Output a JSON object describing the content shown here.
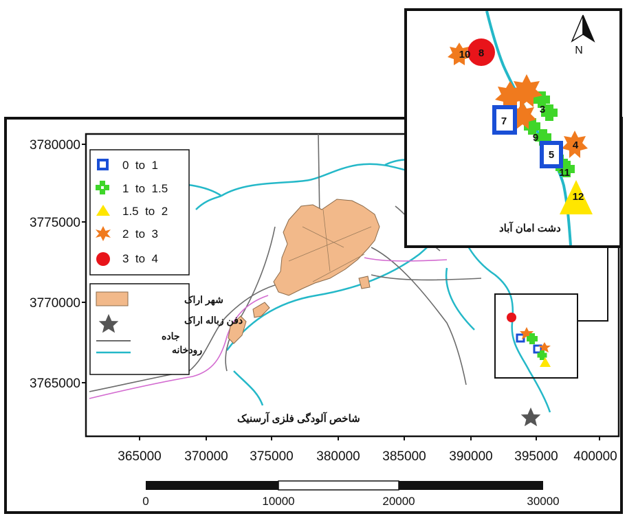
{
  "map": {
    "y_axis_labels": [
      "3780000",
      "3775000",
      "3770000",
      "3765000"
    ],
    "x_axis_labels": [
      "365000",
      "370000",
      "375000",
      "380000",
      "385000",
      "390000",
      "395000",
      "400000"
    ],
    "legend_classes": [
      {
        "label": "0  to  1",
        "symbol": "square",
        "color": "#1a4fd6"
      },
      {
        "label": "1  to  1.5",
        "symbol": "cross",
        "color": "#3fd62a"
      },
      {
        "label": "1.5  to  2",
        "symbol": "triangle",
        "color": "#ffe600"
      },
      {
        "label": "2  to  3",
        "symbol": "star",
        "color": "#f07a1e"
      },
      {
        "label": "3  to  4",
        "symbol": "circle",
        "color": "#e8141a"
      }
    ],
    "legend_features": [
      {
        "label": "شهر اراک",
        "symbol": "city-area",
        "color": "#f2b98a"
      },
      {
        "label": "دفن زباله اراک",
        "symbol": "landfill-star",
        "color": "#555555"
      },
      {
        "label": "جاده",
        "symbol": "road-line",
        "color": "#6b6b6b"
      },
      {
        "label": "رودخانه",
        "symbol": "river-line",
        "color": "#24b8c8"
      }
    ],
    "map_caption": "شاخص آلودگی فلزی آرسنیک",
    "scale_bar_labels": [
      "0",
      "10000",
      "20000",
      "30000"
    ],
    "inset": {
      "north_label": "N",
      "area_label": "دشت امان آباد",
      "sample_labels": [
        "10",
        "8",
        "3",
        "7",
        "9",
        "4",
        "5",
        "11",
        "12"
      ]
    },
    "colors": {
      "river": "#24b8c8",
      "road": "#6b6b6b",
      "boundary_pink": "#d36bd0",
      "city": "#f2b98a"
    }
  }
}
